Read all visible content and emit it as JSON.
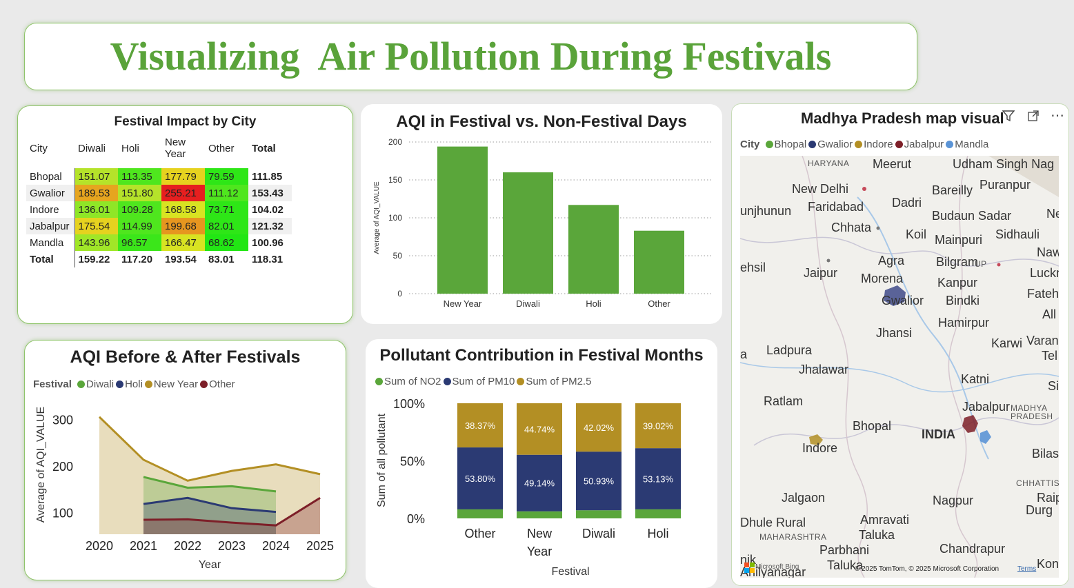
{
  "title": "Visualizing  Air Pollution During Festivals",
  "matrix": {
    "title": "Festival Impact by City",
    "columns": [
      "City",
      "Diwali",
      "Holi",
      "New Year",
      "Other",
      "Total"
    ],
    "rows": [
      {
        "city": "Bhopal",
        "vals": [
          "151.07",
          "113.35",
          "177.79",
          "79.59"
        ],
        "total": "111.85",
        "colors": [
          "#b5e32a",
          "#4fe61e",
          "#e6d21f",
          "#2ee617"
        ]
      },
      {
        "city": "Gwalior",
        "vals": [
          "189.53",
          "151.80",
          "255.21",
          "111.12"
        ],
        "total": "153.43",
        "colors": [
          "#e6a51f",
          "#b5e32a",
          "#e61f1f",
          "#4fe61e"
        ]
      },
      {
        "city": "Indore",
        "vals": [
          "136.01",
          "109.28",
          "168.58",
          "73.71"
        ],
        "total": "104.02",
        "colors": [
          "#8fe627",
          "#4fe61e",
          "#d8e322",
          "#2ee617"
        ]
      },
      {
        "city": "Jabalpur",
        "vals": [
          "175.54",
          "114.99",
          "199.68",
          "82.01"
        ],
        "total": "121.32",
        "colors": [
          "#e6d21f",
          "#4fe61e",
          "#e6961f",
          "#2ee617"
        ]
      },
      {
        "city": "Mandla",
        "vals": [
          "143.96",
          "96.57",
          "166.47",
          "68.62"
        ],
        "total": "100.96",
        "colors": [
          "#a0e628",
          "#3be61a",
          "#d8e322",
          "#22e614"
        ]
      }
    ],
    "total_row": {
      "label": "Total",
      "vals": [
        "159.22",
        "117.20",
        "193.54",
        "83.01"
      ],
      "total": "118.31"
    }
  },
  "bar_chart": {
    "title": "AQI in Festival vs. Non-Festival Days",
    "ylabel": "Average of AQI_VALUE",
    "yticks": [
      "0",
      "50",
      "100",
      "150",
      "200"
    ],
    "color": "#5aa63a"
  },
  "area_chart": {
    "title": "AQI Before & After Festivals",
    "legend_title": "Festival",
    "xlabel": "Year",
    "ylabel": "Average of AQI_VALUE",
    "yticks": [
      "100",
      "200",
      "300"
    ]
  },
  "stack_chart": {
    "title": "Pollutant Contribution in Festival Months",
    "xlabel": "Festival",
    "ylabel": "Sum of all pollutant",
    "yticks": [
      "0%",
      "50%",
      "100%"
    ]
  },
  "map": {
    "title": "Madhya Pradesh map visual",
    "legend_title": "City",
    "legend": [
      {
        "name": "Bhopal",
        "color": "#5aa63a"
      },
      {
        "name": "Gwalior",
        "color": "#2b3a73"
      },
      {
        "name": "Indore",
        "color": "#b38f24"
      },
      {
        "name": "Jabalpur",
        "color": "#7d1f28"
      },
      {
        "name": "Mandla",
        "color": "#5b94d6"
      }
    ],
    "labels": [
      "HARYANA",
      "Meerut",
      "Udham Singh Nag",
      "New Delhi",
      "Bareilly",
      "Puranpur",
      "unjhunun",
      "Faridabad",
      "Dadri",
      "Budaun Sadar",
      "Nepa",
      "Chhata",
      "Koil",
      "Mainpuri",
      "Sidhauli",
      "Nawabg",
      "Agra",
      "Bilgram",
      "UP",
      "ehsil",
      "Jaipur",
      "Morena",
      "Lucknow",
      "Kanpur",
      "Gwalior",
      "Bindki",
      "Fatehpur",
      "All",
      "Hamirpur",
      "Jhansi",
      "Varan",
      "Karwi",
      "Tel",
      "a",
      "Ladpura",
      "Jhalawar",
      "Katni",
      "Sir",
      "Ratlam",
      "Jabalpur",
      "MADHYA PRADESH",
      "Bhopal",
      "INDIA",
      "Indore",
      "Bilasp",
      "CHHATTIS",
      "Raip",
      "Jalgaon",
      "Nagpur",
      "Durg",
      "Dhule Rural",
      "Amravati",
      "MAHARASHTRA",
      "Taluka",
      "Chandrapur",
      "Parbhani",
      "nik",
      "Taluka",
      "Ahilyanagar",
      "Kon"
    ],
    "attribution": "© 2025 TomTom, © 2025 Microsoft Corporation",
    "terms": "Terms",
    "bing": "Microsoft Bing"
  },
  "chart_data": [
    {
      "type": "bar",
      "title": "AQI in Festival vs. Non-Festival Days",
      "categories": [
        "New Year",
        "Diwali",
        "Holi",
        "Other"
      ],
      "values": [
        194,
        160,
        117,
        83
      ],
      "xlabel": "",
      "ylabel": "Average of AQI_VALUE",
      "ylim": [
        0,
        200
      ]
    },
    {
      "type": "area",
      "title": "AQI Before & After Festivals",
      "x": [
        "2020",
        "2021",
        "2022",
        "2023",
        "2024",
        "2025"
      ],
      "series": [
        {
          "name": "Diwali",
          "color": "#5aa63a",
          "values": [
            null,
            178,
            155,
            158,
            147,
            null
          ]
        },
        {
          "name": "Holi",
          "color": "#2b3a73",
          "values": [
            null,
            120,
            133,
            111,
            103,
            null
          ]
        },
        {
          "name": "New Year",
          "color": "#b38f24",
          "values": [
            307,
            215,
            170,
            191,
            205,
            184
          ]
        },
        {
          "name": "Other",
          "color": "#7d1f28",
          "values": [
            null,
            86,
            87,
            80,
            74,
            133
          ]
        }
      ],
      "xlabel": "Year",
      "ylabel": "Average of AQI_VALUE",
      "ylim": [
        55,
        320
      ]
    },
    {
      "type": "bar",
      "title": "Pollutant Contribution in Festival Months",
      "categories": [
        "Other",
        "New Year",
        "Diwali",
        "Holi"
      ],
      "series": [
        {
          "name": "Sum of NO2",
          "color": "#5aa63a",
          "values": [
            7.83,
            6.12,
            7.05,
            7.85
          ]
        },
        {
          "name": "Sum of PM10",
          "color": "#2b3a73",
          "values": [
            53.8,
            49.14,
            50.93,
            53.13
          ]
        },
        {
          "name": "Sum of PM2.5",
          "color": "#b38f24",
          "values": [
            38.37,
            44.74,
            42.02,
            39.02
          ]
        }
      ],
      "xlabel": "Festival",
      "ylabel": "Sum of all pollutant",
      "ylim": [
        0,
        100
      ]
    }
  ]
}
